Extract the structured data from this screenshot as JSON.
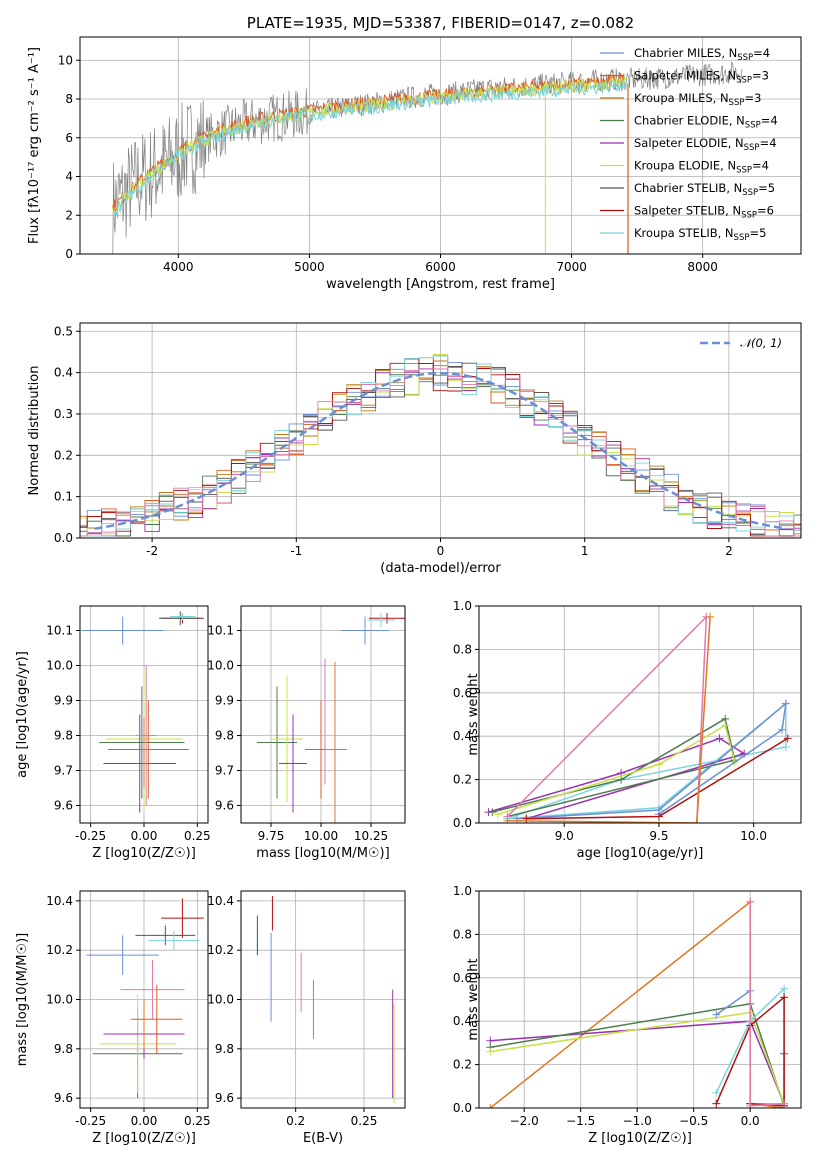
{
  "colors": {
    "Chabrier MILES": "#6a8fd8",
    "Salpeter MILES": "#e05a1c",
    "Kroupa MILES": "#c47a12",
    "Chabrier ELODIE": "#4c7c4c",
    "Salpeter ELODIE": "#9a30b0",
    "Kroupa ELODIE": "#c8e04a",
    "Chabrier STELIB": "#555555",
    "Salpeter STELIB": "#b01010",
    "Kroupa STELIB": "#7ad4dc",
    "pink": "#e07ab0",
    "orange": "#e07820"
  },
  "chart_data": [
    {
      "type": "line",
      "title": "PLATE=1935, MJD=53387, FIBERID=0147, z=0.082",
      "xlabel": "wavelength [Angstrom, rest frame]",
      "ylabel": "Flux [fλ10⁻¹⁷ erg cm⁻² s⁻¹ A⁻¹]",
      "xlim": [
        3250,
        8750
      ],
      "ylim": [
        0,
        11.2
      ],
      "xticks": [
        4000,
        5000,
        6000,
        7000,
        8000
      ],
      "yticks": [
        0,
        2,
        4,
        6,
        8,
        10
      ],
      "legend_loc": "upper right",
      "legend": [
        "Chabrier MILES, N_SSP=4",
        "Salpeter MILES, N_SSP=3",
        "Kroupa MILES, N_SSP=3",
        "Chabrier ELODIE, N_SSP=4",
        "Salpeter ELODIE, N_SSP=4",
        "Kroupa ELODIE, N_SSP=4",
        "Chabrier STELIB, N_SSP=5",
        "Salpeter STELIB, N_SSP=6",
        "Kroupa STELIB, N_SSP=5"
      ],
      "series": [
        {
          "name": "data",
          "x": [
            3500,
            3700,
            3900,
            4100,
            4300,
            4500,
            4700,
            4900,
            5100,
            5300,
            5500,
            5700,
            5900,
            6100,
            6300,
            6500,
            6700,
            6900,
            7100,
            7300,
            7500,
            7700,
            7900,
            8100,
            8300
          ],
          "y": [
            2.5,
            3.8,
            4.6,
            5.6,
            6.2,
            6.7,
            7.0,
            7.2,
            7.4,
            7.6,
            7.8,
            8.0,
            8.2,
            8.3,
            8.5,
            8.6,
            8.7,
            8.8,
            8.9,
            9.0,
            9.0,
            9.1,
            9.2,
            9.3,
            9.4
          ]
        },
        {
          "name": "model",
          "x": [
            3500,
            3700,
            3900,
            4100,
            4300,
            4500,
            4700,
            4900,
            5100,
            5300,
            5500,
            5700,
            5900,
            6100,
            6300,
            6500,
            6700,
            6900,
            7100,
            7300,
            7400
          ],
          "y": [
            2.4,
            3.7,
            4.8,
            5.7,
            6.3,
            6.8,
            7.1,
            7.3,
            7.5,
            7.7,
            7.8,
            8.0,
            8.1,
            8.3,
            8.4,
            8.5,
            8.6,
            8.7,
            8.8,
            8.9,
            9.0
          ]
        }
      ]
    },
    {
      "type": "line",
      "xlabel": "(data-model)/error",
      "ylabel": "Normed distribution",
      "xlim": [
        -2.5,
        2.5
      ],
      "ylim": [
        0,
        0.52
      ],
      "xticks": [
        -2,
        -1,
        0,
        1,
        2
      ],
      "yticks": [
        0.0,
        0.1,
        0.2,
        0.3,
        0.4,
        0.5
      ],
      "legend": [
        "𝒩(0, 1)"
      ],
      "legend_loc": "upper right",
      "series": [
        {
          "name": "𝒩(0, 1)",
          "x": [
            -2.4,
            -1.6,
            -1.2,
            -0.8,
            -0.4,
            0,
            0.4,
            0.8,
            1.2,
            1.6,
            2.4
          ],
          "y": [
            0.022,
            0.111,
            0.194,
            0.29,
            0.368,
            0.399,
            0.368,
            0.29,
            0.194,
            0.111,
            0.022
          ]
        }
      ]
    },
    {
      "type": "scatter",
      "xlabel": "Z [log10(Z/Z☉)]",
      "ylabel": "age  [log10(age/yr)]",
      "xlim": [
        -0.3,
        0.3
      ],
      "ylim": [
        9.55,
        10.17
      ],
      "xticks": [
        -0.25,
        0.0,
        0.25
      ],
      "yticks": [
        9.6,
        9.7,
        9.8,
        9.9,
        10.0,
        10.1
      ]
    },
    {
      "type": "scatter",
      "xlabel": "mass [log10(M/M☉)]",
      "xlim": [
        9.6,
        10.42
      ],
      "ylim": [
        9.55,
        10.17
      ],
      "xticks": [
        9.75,
        10.0,
        10.25
      ],
      "yticks": [
        9.6,
        9.7,
        9.8,
        9.9,
        10.0,
        10.1
      ]
    },
    {
      "type": "line",
      "xlabel": "age  [log10(age/yr)]",
      "ylabel": "mass weight",
      "xlim": [
        8.55,
        10.25
      ],
      "ylim": [
        0,
        1.0
      ],
      "xticks": [
        9.0,
        9.5,
        10.0
      ],
      "yticks": [
        0.0,
        0.2,
        0.4,
        0.6,
        0.8,
        1.0
      ]
    },
    {
      "type": "scatter",
      "xlabel": "Z [log10(Z/Z☉)]",
      "ylabel": "mass [log10(M/M☉)]",
      "xlim": [
        -0.3,
        0.3
      ],
      "ylim": [
        9.56,
        10.44
      ],
      "xticks": [
        -0.25,
        0.0,
        0.25
      ],
      "yticks": [
        9.6,
        9.8,
        10.0,
        10.2,
        10.4
      ]
    },
    {
      "type": "scatter",
      "xlabel": "E(B-V)",
      "xlim": [
        0.16,
        0.28
      ],
      "ylim": [
        9.56,
        10.44
      ],
      "xticks": [
        0.2,
        0.25
      ],
      "yticks": [
        9.6,
        9.8,
        10.0,
        10.2,
        10.4
      ]
    },
    {
      "type": "line",
      "xlabel": "Z [log10(Z/Z☉)]",
      "ylabel": "mass weight",
      "xlim": [
        -2.4,
        0.45
      ],
      "ylim": [
        0,
        1.0
      ],
      "xticks": [
        -2.0,
        -1.5,
        -1.0,
        -0.5,
        0.0
      ],
      "yticks": [
        0.0,
        0.2,
        0.4,
        0.6,
        0.8,
        1.0
      ]
    }
  ]
}
